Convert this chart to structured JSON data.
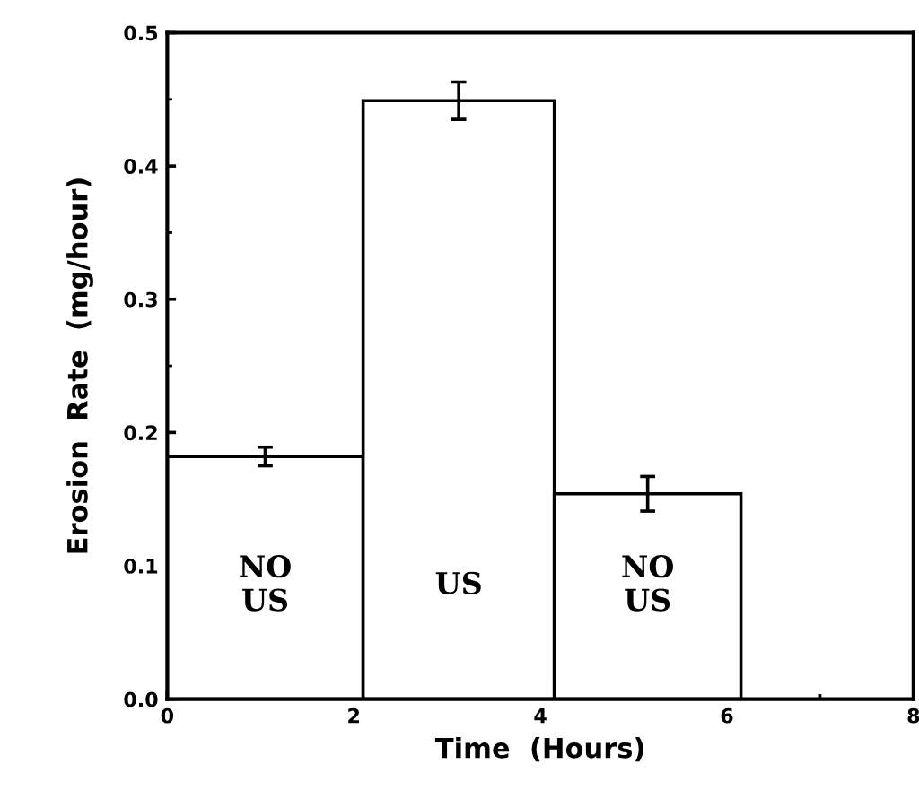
{
  "chart_data": {
    "type": "histogram",
    "xlabel": "Time  (Hours)",
    "ylabel": "Erosion  Rate  (mg/hour)",
    "bins": [
      0,
      2.1,
      4.15,
      6.15
    ],
    "values": [
      0.182,
      0.449,
      0.154
    ],
    "errors": [
      0.007,
      0.014,
      0.013
    ],
    "color": "#ffffff",
    "xlim": [
      0,
      8
    ],
    "xticks": [
      0,
      2,
      4,
      6,
      8
    ],
    "ylim": [
      0,
      0.5
    ],
    "yticks": [
      {
        "value": 0,
        "label": "0.0"
      },
      0.1,
      0.2,
      0.3,
      0.4,
      0.5
    ],
    "grid": false,
    "legend": false,
    "annotations": [
      "NO\nUS",
      "US",
      "NO\nUS"
    ]
  }
}
